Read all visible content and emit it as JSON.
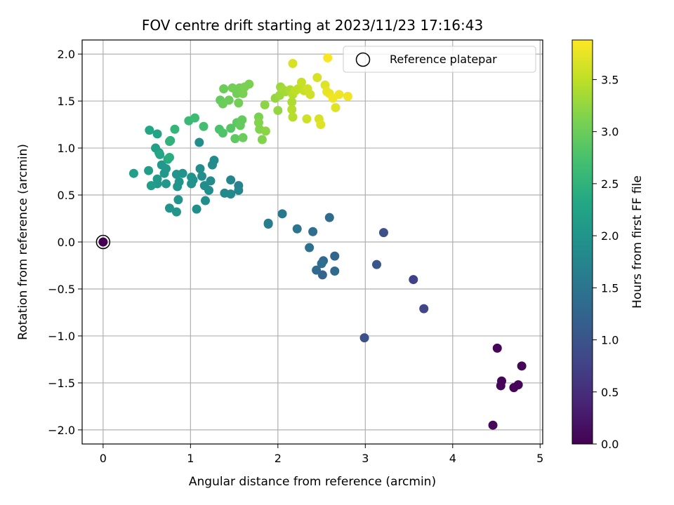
{
  "chart_data": {
    "type": "scatter",
    "title": "FOV centre drift starting at 2023/11/23 17:16:43",
    "xlabel": "Angular distance from reference (arcmin)",
    "ylabel": "Rotation from reference (arcmin)",
    "xlim": [
      -0.24,
      5.03
    ],
    "ylim": [
      -2.15,
      2.15
    ],
    "xticks": [
      0,
      1,
      2,
      3,
      4,
      5
    ],
    "yticks": [
      -2.0,
      -1.5,
      -1.0,
      -0.5,
      0.0,
      0.5,
      1.0,
      1.5,
      2.0
    ],
    "xtick_labels": [
      "0",
      "1",
      "2",
      "3",
      "4",
      "5"
    ],
    "ytick_labels": [
      "−2.0",
      "−1.5",
      "−1.0",
      "−0.5",
      "0.0",
      "0.5",
      "1.0",
      "1.5",
      "2.0"
    ],
    "grid": true,
    "colormap": "viridis",
    "colorbar": {
      "label": "Hours from first FF file",
      "range": [
        0.0,
        3.88
      ],
      "ticks": [
        0.0,
        0.5,
        1.0,
        1.5,
        2.0,
        2.5,
        3.0,
        3.5
      ],
      "tick_labels": [
        "0.0",
        "0.5",
        "1.0",
        "1.5",
        "2.0",
        "2.5",
        "3.0",
        "3.5"
      ]
    },
    "legend": {
      "position": "top-right",
      "entry": "Reference platepar"
    },
    "reference_point": {
      "x": 0.0,
      "y": 0.0,
      "hours": 0.0
    },
    "points": [
      {
        "x": 4.79,
        "y": -1.32,
        "h": 0.05
      },
      {
        "x": 4.51,
        "y": -1.13,
        "h": 0.06
      },
      {
        "x": 4.56,
        "y": -1.48,
        "h": 0.04
      },
      {
        "x": 4.55,
        "y": -1.53,
        "h": 0.05
      },
      {
        "x": 4.7,
        "y": -1.55,
        "h": 0.05
      },
      {
        "x": 4.75,
        "y": -1.52,
        "h": 0.06
      },
      {
        "x": 4.46,
        "y": -1.95,
        "h": 0.07
      },
      {
        "x": 3.67,
        "y": -0.71,
        "h": 0.8
      },
      {
        "x": 3.55,
        "y": -0.4,
        "h": 0.75
      },
      {
        "x": 3.13,
        "y": -0.24,
        "h": 1.05
      },
      {
        "x": 3.21,
        "y": 0.1,
        "h": 0.95
      },
      {
        "x": 2.99,
        "y": -1.02,
        "h": 0.95
      },
      {
        "x": 2.65,
        "y": -0.15,
        "h": 1.25
      },
      {
        "x": 2.65,
        "y": -0.31,
        "h": 1.3
      },
      {
        "x": 2.59,
        "y": 0.26,
        "h": 1.35
      },
      {
        "x": 2.52,
        "y": -0.2,
        "h": 1.3
      },
      {
        "x": 2.5,
        "y": -0.23,
        "h": 1.4
      },
      {
        "x": 2.51,
        "y": -0.35,
        "h": 1.25
      },
      {
        "x": 2.44,
        "y": -0.3,
        "h": 1.35
      },
      {
        "x": 2.4,
        "y": 0.11,
        "h": 1.4
      },
      {
        "x": 2.36,
        "y": -0.06,
        "h": 1.45
      },
      {
        "x": 2.22,
        "y": 0.14,
        "h": 1.5
      },
      {
        "x": 2.05,
        "y": 0.3,
        "h": 1.55
      },
      {
        "x": 1.89,
        "y": 0.2,
        "h": 1.6
      },
      {
        "x": 1.89,
        "y": 0.19,
        "h": 1.65
      },
      {
        "x": 1.55,
        "y": 0.6,
        "h": 1.7
      },
      {
        "x": 1.55,
        "y": 0.55,
        "h": 1.75
      },
      {
        "x": 1.46,
        "y": 0.66,
        "h": 1.75
      },
      {
        "x": 1.46,
        "y": 0.51,
        "h": 1.8
      },
      {
        "x": 1.39,
        "y": 0.52,
        "h": 1.8
      },
      {
        "x": 1.27,
        "y": 0.87,
        "h": 1.85
      },
      {
        "x": 1.25,
        "y": 0.82,
        "h": 1.85
      },
      {
        "x": 1.23,
        "y": 0.65,
        "h": 1.85
      },
      {
        "x": 1.21,
        "y": 0.55,
        "h": 1.9
      },
      {
        "x": 1.16,
        "y": 0.6,
        "h": 1.9
      },
      {
        "x": 1.17,
        "y": 0.44,
        "h": 1.9
      },
      {
        "x": 1.13,
        "y": 0.7,
        "h": 1.9
      },
      {
        "x": 1.11,
        "y": 0.78,
        "h": 1.9
      },
      {
        "x": 1.1,
        "y": 1.06,
        "h": 1.9
      },
      {
        "x": 1.07,
        "y": 0.35,
        "h": 1.9
      },
      {
        "x": 1.03,
        "y": 0.66,
        "h": 1.95
      },
      {
        "x": 1.01,
        "y": 0.62,
        "h": 1.95
      },
      {
        "x": 1.01,
        "y": 0.69,
        "h": 1.95
      },
      {
        "x": 0.91,
        "y": 0.73,
        "h": 1.95
      },
      {
        "x": 0.87,
        "y": 0.64,
        "h": 2.0
      },
      {
        "x": 0.86,
        "y": 0.45,
        "h": 2.0
      },
      {
        "x": 0.85,
        "y": 0.59,
        "h": 2.0
      },
      {
        "x": 0.84,
        "y": 0.72,
        "h": 2.0
      },
      {
        "x": 0.84,
        "y": 0.32,
        "h": 2.0
      },
      {
        "x": 0.76,
        "y": 0.36,
        "h": 2.0
      },
      {
        "x": 0.72,
        "y": 0.62,
        "h": 2.05
      },
      {
        "x": 0.72,
        "y": 0.78,
        "h": 2.05
      },
      {
        "x": 0.7,
        "y": 0.73,
        "h": 2.05
      },
      {
        "x": 0.67,
        "y": 0.82,
        "h": 2.05
      },
      {
        "x": 0.64,
        "y": 0.95,
        "h": 2.1
      },
      {
        "x": 0.62,
        "y": 0.67,
        "h": 2.1
      },
      {
        "x": 0.62,
        "y": 0.62,
        "h": 2.1
      },
      {
        "x": 0.55,
        "y": 0.6,
        "h": 2.15
      },
      {
        "x": 0.52,
        "y": 0.76,
        "h": 2.15
      },
      {
        "x": 0.35,
        "y": 0.73,
        "h": 2.2
      },
      {
        "x": 0.6,
        "y": 1.0,
        "h": 2.2
      },
      {
        "x": 0.62,
        "y": 1.15,
        "h": 2.25
      },
      {
        "x": 0.53,
        "y": 1.19,
        "h": 2.3
      },
      {
        "x": 0.65,
        "y": 0.93,
        "h": 2.3
      },
      {
        "x": 0.74,
        "y": 0.88,
        "h": 2.35
      },
      {
        "x": 0.76,
        "y": 0.9,
        "h": 2.4
      },
      {
        "x": 0.77,
        "y": 1.08,
        "h": 2.45
      },
      {
        "x": 0.76,
        "y": 1.07,
        "h": 2.5
      },
      {
        "x": 0.82,
        "y": 1.2,
        "h": 2.55
      },
      {
        "x": 0.98,
        "y": 1.29,
        "h": 2.6
      },
      {
        "x": 1.05,
        "y": 1.32,
        "h": 2.65
      },
      {
        "x": 1.15,
        "y": 1.23,
        "h": 2.7
      },
      {
        "x": 1.33,
        "y": 1.2,
        "h": 2.75
      },
      {
        "x": 1.37,
        "y": 1.16,
        "h": 2.8
      },
      {
        "x": 1.46,
        "y": 1.21,
        "h": 2.85
      },
      {
        "x": 1.51,
        "y": 1.1,
        "h": 2.9
      },
      {
        "x": 1.53,
        "y": 1.27,
        "h": 2.9
      },
      {
        "x": 1.57,
        "y": 1.24,
        "h": 2.95
      },
      {
        "x": 1.59,
        "y": 1.3,
        "h": 2.95
      },
      {
        "x": 1.6,
        "y": 1.11,
        "h": 3.0
      },
      {
        "x": 1.34,
        "y": 1.51,
        "h": 2.95
      },
      {
        "x": 1.37,
        "y": 1.47,
        "h": 3.0
      },
      {
        "x": 1.38,
        "y": 1.63,
        "h": 3.0
      },
      {
        "x": 1.44,
        "y": 1.51,
        "h": 3.0
      },
      {
        "x": 1.48,
        "y": 1.64,
        "h": 3.05
      },
      {
        "x": 1.53,
        "y": 1.58,
        "h": 3.05
      },
      {
        "x": 1.55,
        "y": 1.48,
        "h": 3.05
      },
      {
        "x": 1.56,
        "y": 1.64,
        "h": 3.05
      },
      {
        "x": 1.6,
        "y": 1.58,
        "h": 3.1
      },
      {
        "x": 1.62,
        "y": 1.65,
        "h": 3.1
      },
      {
        "x": 1.67,
        "y": 1.68,
        "h": 3.1
      },
      {
        "x": 1.78,
        "y": 1.33,
        "h": 3.1
      },
      {
        "x": 1.78,
        "y": 1.27,
        "h": 3.15
      },
      {
        "x": 1.79,
        "y": 1.2,
        "h": 3.15
      },
      {
        "x": 1.82,
        "y": 1.09,
        "h": 3.15
      },
      {
        "x": 1.86,
        "y": 1.18,
        "h": 3.2
      },
      {
        "x": 1.85,
        "y": 1.46,
        "h": 3.2
      },
      {
        "x": 1.97,
        "y": 1.53,
        "h": 3.25
      },
      {
        "x": 2.0,
        "y": 1.4,
        "h": 3.25
      },
      {
        "x": 2.02,
        "y": 1.56,
        "h": 3.3
      },
      {
        "x": 2.03,
        "y": 1.65,
        "h": 3.3
      },
      {
        "x": 2.06,
        "y": 1.62,
        "h": 3.35
      },
      {
        "x": 2.09,
        "y": 1.6,
        "h": 3.35
      },
      {
        "x": 2.14,
        "y": 1.62,
        "h": 3.4
      },
      {
        "x": 2.16,
        "y": 1.49,
        "h": 3.4
      },
      {
        "x": 2.16,
        "y": 1.41,
        "h": 3.45
      },
      {
        "x": 2.17,
        "y": 1.33,
        "h": 3.45
      },
      {
        "x": 2.17,
        "y": 1.57,
        "h": 3.45
      },
      {
        "x": 2.2,
        "y": 1.61,
        "h": 3.5
      },
      {
        "x": 2.23,
        "y": 1.63,
        "h": 3.5
      },
      {
        "x": 2.27,
        "y": 1.7,
        "h": 3.55
      },
      {
        "x": 2.3,
        "y": 1.61,
        "h": 3.55
      },
      {
        "x": 2.34,
        "y": 1.63,
        "h": 3.6
      },
      {
        "x": 2.37,
        "y": 1.57,
        "h": 3.6
      },
      {
        "x": 2.33,
        "y": 1.31,
        "h": 3.6
      },
      {
        "x": 2.45,
        "y": 1.75,
        "h": 3.65
      },
      {
        "x": 2.47,
        "y": 1.31,
        "h": 3.65
      },
      {
        "x": 2.49,
        "y": 1.25,
        "h": 3.7
      },
      {
        "x": 2.54,
        "y": 1.67,
        "h": 3.7
      },
      {
        "x": 2.56,
        "y": 1.6,
        "h": 3.75
      },
      {
        "x": 2.59,
        "y": 1.58,
        "h": 3.75
      },
      {
        "x": 2.63,
        "y": 1.53,
        "h": 3.8
      },
      {
        "x": 2.66,
        "y": 1.43,
        "h": 3.7
      },
      {
        "x": 2.7,
        "y": 1.57,
        "h": 3.8
      },
      {
        "x": 2.8,
        "y": 1.55,
        "h": 3.8
      },
      {
        "x": 2.17,
        "y": 1.9,
        "h": 3.65
      },
      {
        "x": 2.57,
        "y": 1.96,
        "h": 3.85
      }
    ]
  }
}
